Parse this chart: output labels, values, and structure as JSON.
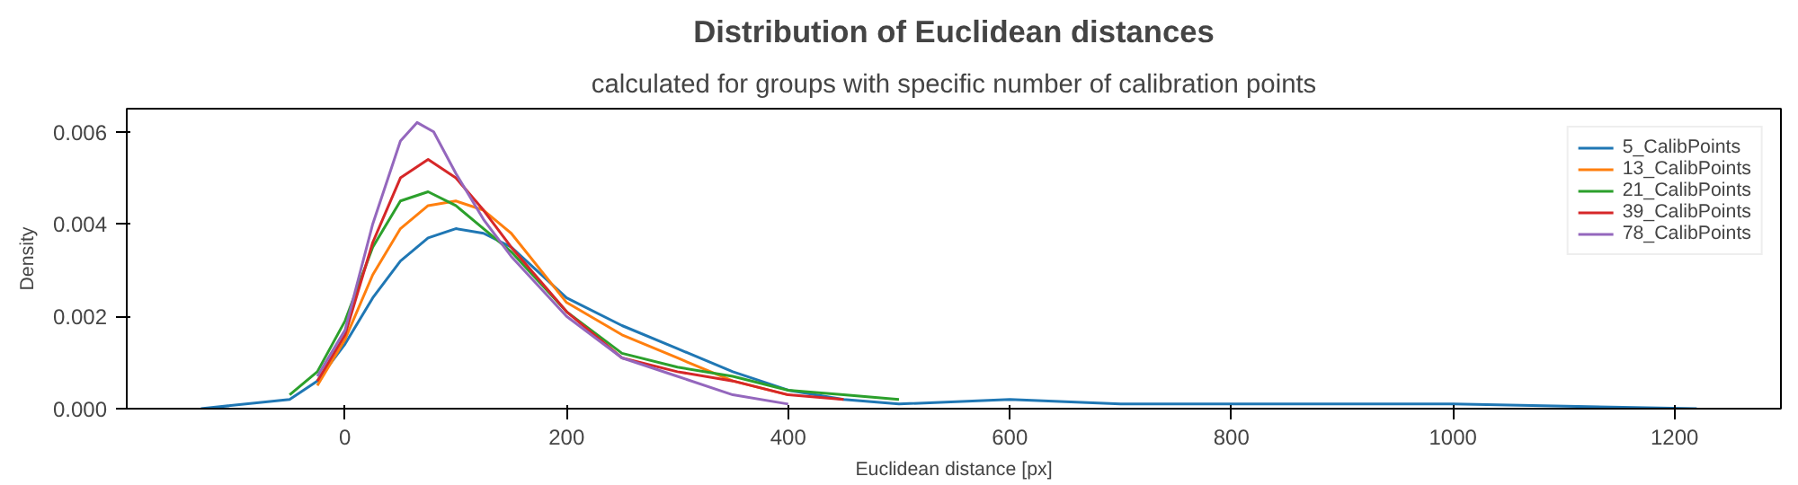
{
  "chart_data": {
    "type": "line",
    "title": "Distribution of Euclidean distances",
    "subtitle": "calculated for groups with specific number of calibration points",
    "xlabel": "Euclidean distance [px]",
    "ylabel": "Density",
    "xlim": [
      -197,
      1296
    ],
    "ylim": [
      0,
      0.0065
    ],
    "xticks": [
      0,
      200,
      400,
      600,
      800,
      1000,
      1200
    ],
    "yticks": [
      {
        "value": 0,
        "label": "0.000"
      },
      {
        "value": 0.002,
        "label": "0.002"
      },
      {
        "value": 0.004,
        "label": "0.004"
      },
      {
        "value": 0.006,
        "label": "0.006"
      }
    ],
    "grid": false,
    "legend": "top right",
    "series": [
      {
        "name": "5_CalibPoints",
        "color": "#1f77b4",
        "x": [
          -130,
          -50,
          -25,
          0,
          25,
          50,
          75,
          100,
          125,
          150,
          200,
          250,
          300,
          350,
          400,
          450,
          500,
          600,
          700,
          800,
          1000,
          1220
        ],
        "values": [
          0,
          0.0002,
          0.0006,
          0.0014,
          0.0024,
          0.0032,
          0.0037,
          0.0039,
          0.0038,
          0.0035,
          0.0024,
          0.0018,
          0.0013,
          0.0008,
          0.0004,
          0.0002,
          0.0001,
          0.0002,
          0.0001,
          0.0001,
          0.0001,
          0
        ]
      },
      {
        "name": "13_CalibPoints",
        "color": "#ff7f0e",
        "x": [
          -25,
          0,
          25,
          50,
          75,
          100,
          125,
          150,
          200,
          250,
          300,
          350,
          400
        ],
        "values": [
          0.0005,
          0.0015,
          0.0029,
          0.0039,
          0.0044,
          0.0045,
          0.0043,
          0.0038,
          0.0023,
          0.0016,
          0.0011,
          0.0006,
          0.0003
        ]
      },
      {
        "name": "21_CalibPoints",
        "color": "#2ca02c",
        "x": [
          -50,
          -25,
          0,
          25,
          50,
          75,
          100,
          125,
          150,
          200,
          250,
          300,
          350,
          400,
          450,
          500
        ],
        "values": [
          0.0003,
          0.0008,
          0.0019,
          0.0035,
          0.0045,
          0.0047,
          0.0044,
          0.0039,
          0.0034,
          0.0021,
          0.0012,
          0.0009,
          0.0007,
          0.0004,
          0.0003,
          0.0002
        ]
      },
      {
        "name": "39_CalibPoints",
        "color": "#d62728",
        "x": [
          -25,
          0,
          25,
          50,
          75,
          100,
          125,
          150,
          200,
          250,
          300,
          350,
          400,
          450
        ],
        "values": [
          0.0006,
          0.0016,
          0.0036,
          0.005,
          0.0054,
          0.005,
          0.0043,
          0.0035,
          0.0021,
          0.0011,
          0.0008,
          0.0006,
          0.0003,
          0.0002
        ]
      },
      {
        "name": "78_CalibPoints",
        "color": "#9467bd",
        "x": [
          -25,
          0,
          25,
          50,
          65,
          80,
          100,
          125,
          150,
          200,
          250,
          300,
          350,
          400
        ],
        "values": [
          0.0007,
          0.0017,
          0.004,
          0.0058,
          0.0062,
          0.006,
          0.0051,
          0.0041,
          0.0033,
          0.002,
          0.0011,
          0.0007,
          0.0003,
          0.0001
        ]
      }
    ]
  }
}
